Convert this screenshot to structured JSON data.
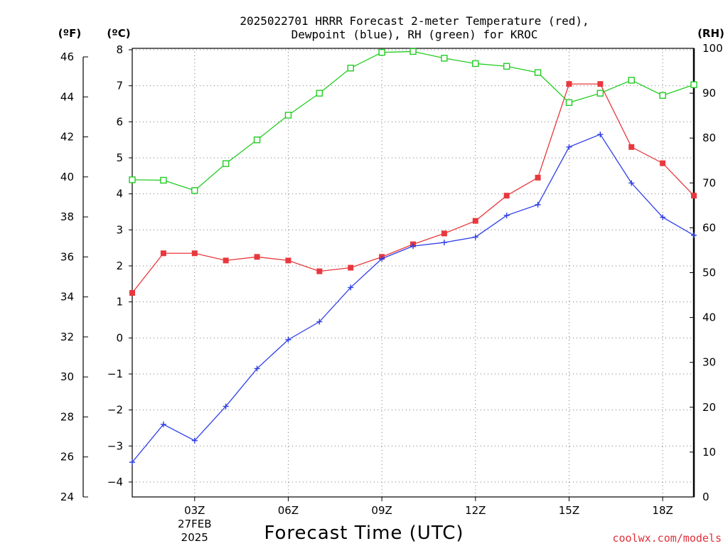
{
  "chart_data": {
    "type": "line",
    "title_lines": [
      "2025022701 HRRR Forecast 2-meter Temperature (red),",
      "Dewpoint (blue), RH (green) for KROC"
    ],
    "xlabel": "Forecast Time (UTC)",
    "credit": "coolwx.com/models",
    "x_hours": [
      1,
      2,
      3,
      4,
      5,
      6,
      7,
      8,
      9,
      10,
      11,
      12,
      13,
      14,
      15,
      16,
      17,
      18,
      19
    ],
    "x_range": [
      1,
      19
    ],
    "x_ticks": [
      {
        "hour": 3,
        "label": "03Z",
        "sub": [
          "27FEB",
          "2025"
        ]
      },
      {
        "hour": 6,
        "label": "06Z",
        "sub": []
      },
      {
        "hour": 9,
        "label": "09Z",
        "sub": []
      },
      {
        "hour": 12,
        "label": "12Z",
        "sub": []
      },
      {
        "hour": 15,
        "label": "15Z",
        "sub": []
      },
      {
        "hour": 18,
        "label": "18Z",
        "sub": []
      }
    ],
    "axes": {
      "fahrenheit": {
        "unit_label": "(ºF)",
        "range": [
          24,
          46
        ],
        "ticks": [
          "24",
          "26",
          "28",
          "30",
          "32",
          "34",
          "36",
          "38",
          "40",
          "42",
          "44",
          "46"
        ]
      },
      "celsius": {
        "unit_label": "(ºC)",
        "range": [
          -4,
          8
        ],
        "ticks": [
          "−4",
          "−3",
          "−2",
          "−1",
          "0",
          "1",
          "2",
          "3",
          "4",
          "5",
          "6",
          "7",
          "8"
        ]
      },
      "rh": {
        "unit_label": "(RH)",
        "range": [
          0,
          100
        ],
        "ticks": [
          "0",
          "10",
          "20",
          "30",
          "40",
          "50",
          "60",
          "70",
          "80",
          "90",
          "100"
        ]
      }
    },
    "grid": true,
    "series": [
      {
        "key": "temperature",
        "axis": "celsius",
        "color": "#e8383d",
        "marker": "filled-square",
        "values": [
          1.25,
          2.35,
          2.35,
          2.15,
          2.25,
          2.15,
          1.85,
          1.95,
          2.25,
          2.6,
          2.9,
          3.25,
          3.95,
          4.45,
          7.05,
          7.05,
          5.3,
          4.85,
          3.95
        ]
      },
      {
        "key": "dewpoint",
        "axis": "celsius",
        "color": "#2f3fe8",
        "marker": "plus",
        "values": [
          -3.45,
          -2.4,
          -2.85,
          -1.9,
          -0.85,
          -0.05,
          0.45,
          1.4,
          2.2,
          2.55,
          2.65,
          2.8,
          3.4,
          3.7,
          5.3,
          5.65,
          4.3,
          3.35,
          2.85
        ]
      },
      {
        "key": "rh",
        "axis": "rh",
        "color": "#22cc22",
        "marker": "open-square",
        "values": [
          70.7,
          70.6,
          68.3,
          74.3,
          79.6,
          85.1,
          90.0,
          95.6,
          99.1,
          99.3,
          97.8,
          96.6,
          96.0,
          94.6,
          87.9,
          90.0,
          92.9,
          89.5,
          91.9
        ]
      }
    ]
  }
}
